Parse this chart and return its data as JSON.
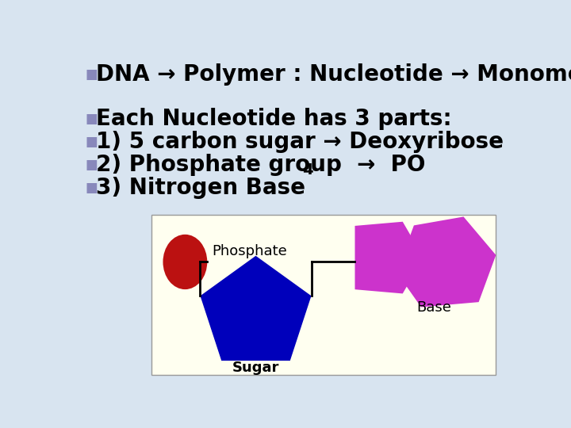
{
  "bg_color": "#d8e4f0",
  "bullet_color": "#8888bb",
  "text_color": "#000000",
  "line1": "DNA → Polymer : Nucleotide → Monomer",
  "line2": "Each Nucleotide has 3 parts:",
  "line3": "1) 5 carbon sugar → Deoxyribose",
  "line4a": "2) Phosphate group  →  PO",
  "line4b": "4",
  "line5": "3) Nitrogen Base",
  "diagram_bg": "#fffff0",
  "phosphate_color": "#bb1111",
  "sugar_color": "#0000bb",
  "base_color": "#cc33cc",
  "label_phosphate": "Phosphate",
  "label_sugar": "Sugar",
  "label_base": "Base",
  "font_size_main": 20,
  "font_size_sub": 14,
  "font_size_diagram": 13
}
